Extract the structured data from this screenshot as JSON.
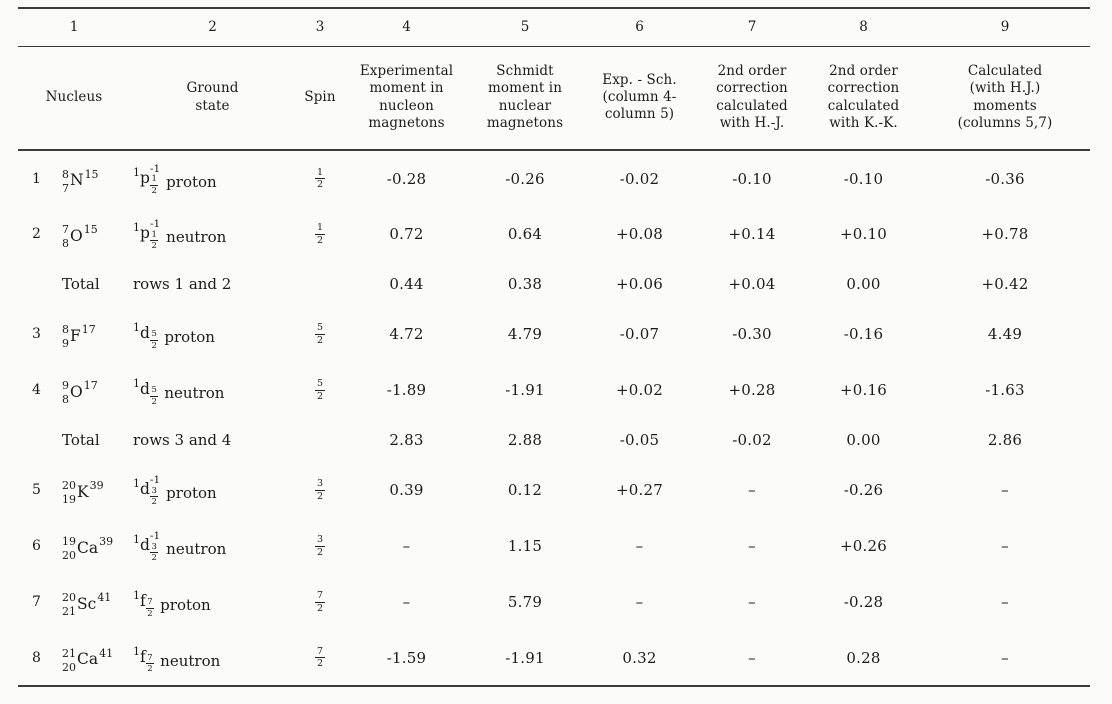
{
  "document": {
    "kind": "scanned journal table",
    "ink_color": "#1b1b1b",
    "paper_color": "#fbfbf9",
    "rule_color": "#3a3a3a"
  },
  "table": {
    "column_numbers": [
      "1",
      "2",
      "3",
      "4",
      "5",
      "6",
      "7",
      "8",
      "9"
    ],
    "headers": [
      [
        "Nucleus"
      ],
      [
        "Ground",
        "state"
      ],
      [
        "Spin"
      ],
      [
        "Experimental",
        "moment in",
        "nucleon",
        "magnetons"
      ],
      [
        "Schmidt",
        "moment in",
        "nuclear",
        "magnetons"
      ],
      [
        "Exp. - Sch.",
        "(column 4-",
        "column 5)"
      ],
      [
        "2nd order",
        "correction",
        "calculated",
        "with H.-J."
      ],
      [
        "2nd order",
        "correction",
        "calculated",
        "with K.-K."
      ],
      [
        "Calculated",
        "(with H.J.)",
        "moments",
        "(columns 5,7)"
      ]
    ],
    "rows": [
      {
        "type": "nuclide",
        "num": "1",
        "nucleus": {
          "top": "8",
          "bottom": "7",
          "symbol": "N",
          "sup": "15"
        },
        "ground": {
          "pre": "1",
          "letter": "p",
          "frac": [
            "1",
            "2"
          ],
          "exp": "-1",
          "label": "proton"
        },
        "spin": [
          "1",
          "2"
        ],
        "values": [
          "-0.28",
          "-0.26",
          "-0.02",
          "-0.10",
          "-0.10",
          "-0.36"
        ]
      },
      {
        "type": "nuclide",
        "num": "2",
        "nucleus": {
          "top": "7",
          "bottom": "8",
          "symbol": "O",
          "sup": "15"
        },
        "ground": {
          "pre": "1",
          "letter": "p",
          "frac": [
            "1",
            "2"
          ],
          "exp": "-1",
          "label": "neutron"
        },
        "spin": [
          "1",
          "2"
        ],
        "values": [
          "0.72",
          "0.64",
          "+0.08",
          "+0.14",
          "+0.10",
          "+0.78"
        ]
      },
      {
        "type": "total",
        "num": "",
        "label": "Total",
        "desc": "rows 1 and 2",
        "values": [
          "0.44",
          "0.38",
          "+0.06",
          "+0.04",
          "0.00",
          "+0.42"
        ]
      },
      {
        "type": "nuclide",
        "num": "3",
        "nucleus": {
          "top": "8",
          "bottom": "9",
          "symbol": "F",
          "sup": "17"
        },
        "ground": {
          "pre": "1",
          "letter": "d",
          "frac": [
            "5",
            "2"
          ],
          "exp": "",
          "label": "proton"
        },
        "spin": [
          "5",
          "2"
        ],
        "values": [
          "4.72",
          "4.79",
          "-0.07",
          "-0.30",
          "-0.16",
          "4.49"
        ]
      },
      {
        "type": "nuclide",
        "num": "4",
        "nucleus": {
          "top": "9",
          "bottom": "8",
          "symbol": "O",
          "sup": "17"
        },
        "ground": {
          "pre": "1",
          "letter": "d",
          "frac": [
            "5",
            "2"
          ],
          "exp": "",
          "label": "neutron"
        },
        "spin": [
          "5",
          "2"
        ],
        "values": [
          "-1.89",
          "-1.91",
          "+0.02",
          "+0.28",
          "+0.16",
          "-1.63"
        ]
      },
      {
        "type": "total",
        "num": "",
        "label": "Total",
        "desc": "rows 3 and 4",
        "values": [
          "2.83",
          "2.88",
          "-0.05",
          "-0.02",
          "0.00",
          "2.86"
        ]
      },
      {
        "type": "nuclide",
        "num": "5",
        "nucleus": {
          "top": "20",
          "bottom": "19",
          "symbol": "K",
          "sup": "39"
        },
        "ground": {
          "pre": "1",
          "letter": "d",
          "frac": [
            "3",
            "2"
          ],
          "exp": "-1",
          "label": "proton"
        },
        "spin": [
          "3",
          "2"
        ],
        "values": [
          "0.39",
          "0.12",
          "+0.27",
          "–",
          "-0.26",
          "–"
        ]
      },
      {
        "type": "nuclide",
        "num": "6",
        "nucleus": {
          "top": "19",
          "bottom": "20",
          "symbol": "Ca",
          "sup": "39"
        },
        "ground": {
          "pre": "1",
          "letter": "d",
          "frac": [
            "3",
            "2"
          ],
          "exp": "-1",
          "label": "neutron"
        },
        "spin": [
          "3",
          "2"
        ],
        "values": [
          "–",
          "1.15",
          "–",
          "–",
          "+0.26",
          "–"
        ]
      },
      {
        "type": "nuclide",
        "num": "7",
        "nucleus": {
          "top": "20",
          "bottom": "21",
          "symbol": "Sc",
          "sup": "41"
        },
        "ground": {
          "pre": "1",
          "letter": "f",
          "frac": [
            "7",
            "2"
          ],
          "exp": "",
          "label": "proton"
        },
        "spin": [
          "7",
          "2"
        ],
        "values": [
          "–",
          "5.79",
          "–",
          "–",
          "-0.28",
          "–"
        ]
      },
      {
        "type": "nuclide",
        "num": "8",
        "nucleus": {
          "top": "21",
          "bottom": "20",
          "symbol": "Ca",
          "sup": "41"
        },
        "ground": {
          "pre": "1",
          "letter": "f",
          "frac": [
            "7",
            "2"
          ],
          "exp": "",
          "label": "neutron"
        },
        "spin": [
          "7",
          "2"
        ],
        "values": [
          "-1.59",
          "-1.91",
          "0.32",
          "–",
          "0.28",
          "–"
        ]
      }
    ]
  }
}
